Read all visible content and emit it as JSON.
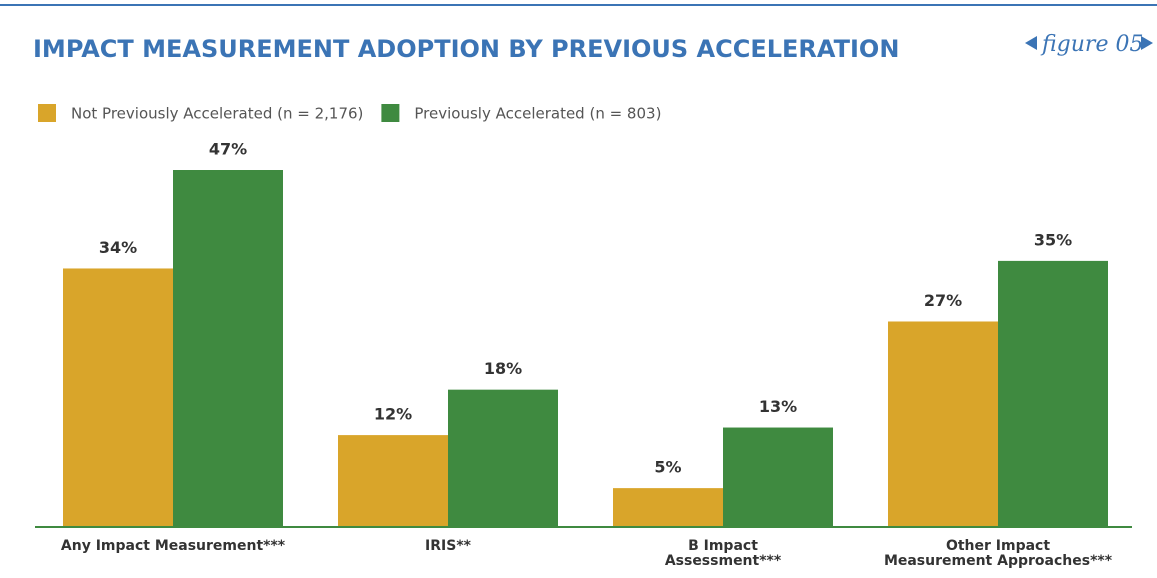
{
  "chart_data": {
    "type": "bar",
    "title": "IMPACT MEASUREMENT ADOPTION BY PREVIOUS ACCELERATION",
    "annotation": "figure 05",
    "categories": [
      "Any Impact Measurement***",
      "IRIS**",
      "B Impact\nAssessment***",
      "Other Impact\nMeasurement Approaches***"
    ],
    "series": [
      {
        "name": "Not Previously Accelerated (n = 2,176)",
        "color": "#d9a52a",
        "values": [
          34,
          12,
          5,
          27
        ],
        "value_labels": [
          "34%",
          "12%",
          "5%",
          "27%"
        ]
      },
      {
        "name": "Previously Accelerated (n = 803)",
        "color": "#3f8a40",
        "values": [
          47,
          18,
          13,
          35
        ],
        "value_labels": [
          "47%",
          "18%",
          "13%",
          "35%"
        ]
      }
    ],
    "legend": "top-left"
  }
}
